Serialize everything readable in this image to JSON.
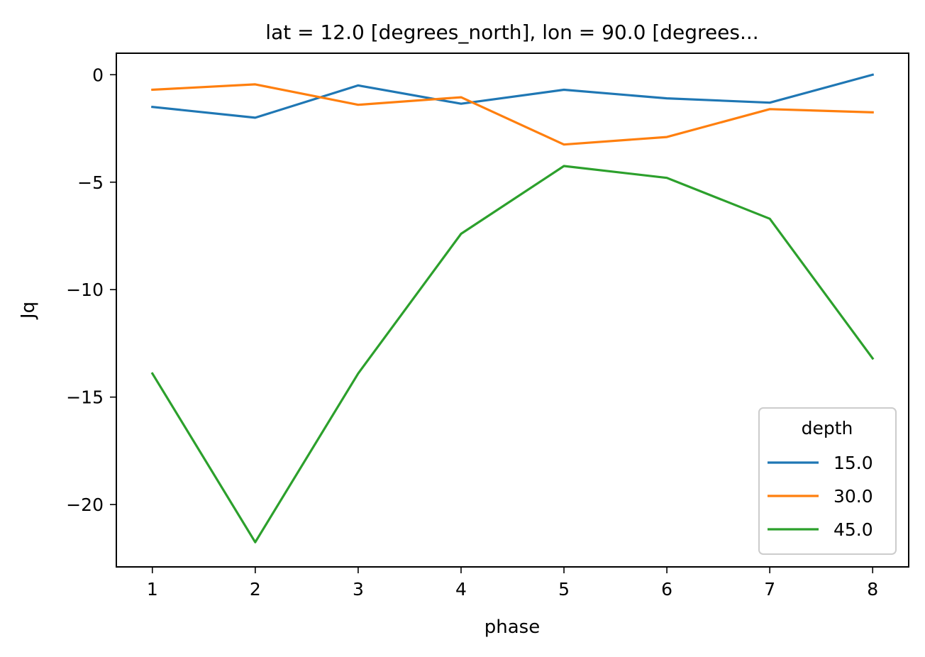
{
  "chart_data": {
    "type": "line",
    "title": "lat = 12.0 [degrees_north], lon = 90.0 [degrees...",
    "xlabel": "phase",
    "ylabel": "Jq",
    "xlim": [
      0.65,
      8.35
    ],
    "ylim": [
      -22.9,
      1.0
    ],
    "x": [
      1,
      2,
      3,
      4,
      5,
      6,
      7,
      8
    ],
    "xticks": [
      1,
      2,
      3,
      4,
      5,
      6,
      7,
      8
    ],
    "yticks": [
      0,
      -5,
      -10,
      -15,
      -20
    ],
    "ytick_labels": [
      "0",
      "−5",
      "−10",
      "−15",
      "−20"
    ],
    "grid": false,
    "legend": {
      "title": "depth",
      "placement": "lower-right"
    },
    "series": [
      {
        "name": "15.0",
        "color": "#1f77b4",
        "values": [
          -1.5,
          -2.0,
          -0.5,
          -1.35,
          -0.7,
          -1.1,
          -1.3,
          0.0
        ]
      },
      {
        "name": "30.0",
        "color": "#ff7f0e",
        "values": [
          -0.7,
          -0.45,
          -1.4,
          -1.05,
          -3.25,
          -2.9,
          -1.6,
          -1.75
        ]
      },
      {
        "name": "45.0",
        "color": "#2ca02c",
        "values": [
          -13.9,
          -21.75,
          -13.9,
          -7.4,
          -4.25,
          -4.8,
          -6.7,
          -13.2
        ]
      }
    ]
  }
}
